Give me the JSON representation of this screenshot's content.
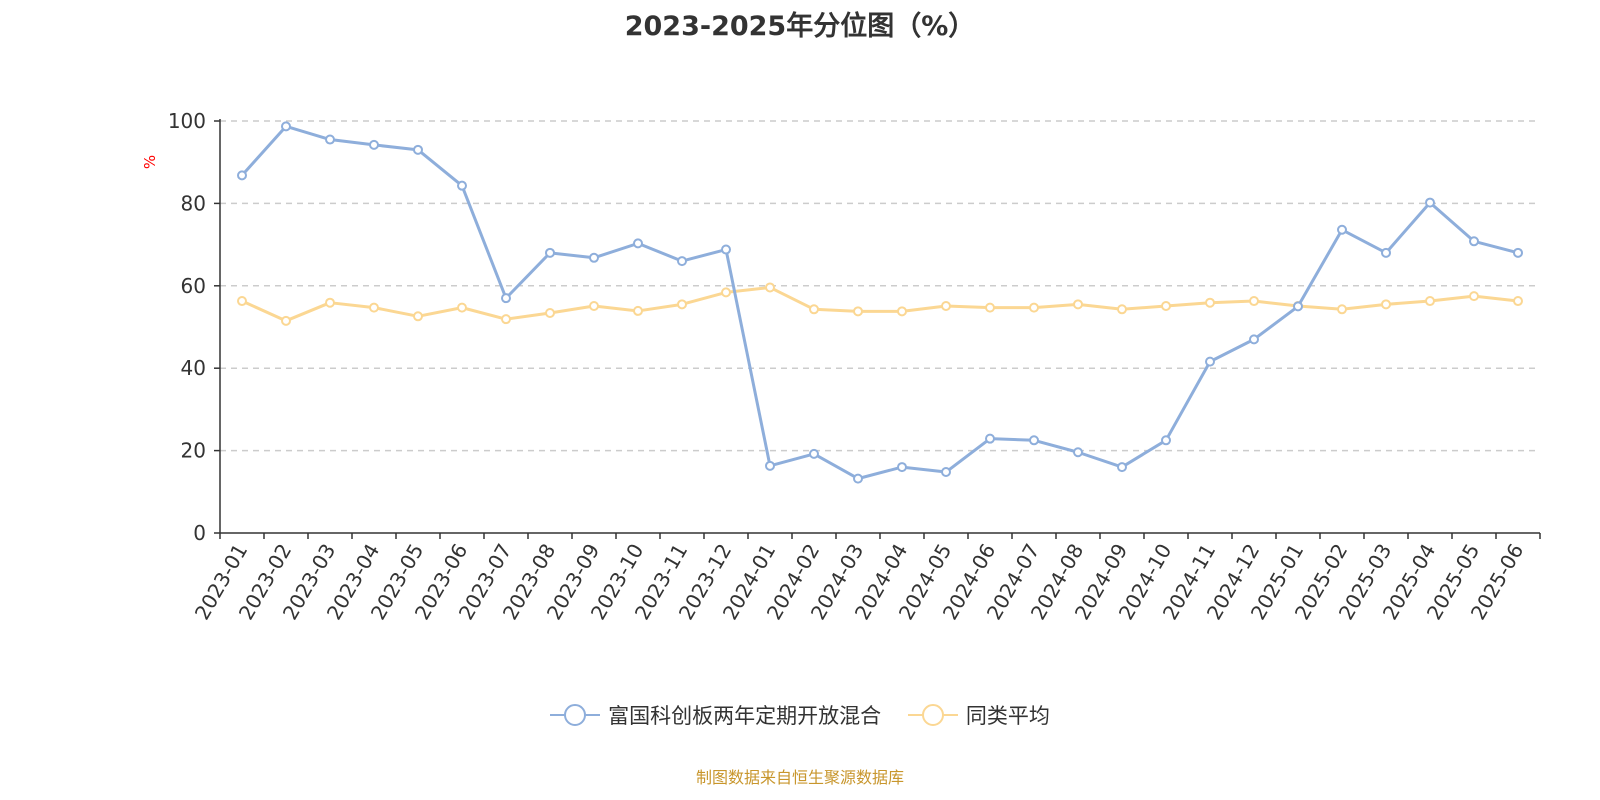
{
  "chart_data": {
    "type": "line",
    "title": "2023-2025年分位图（%）",
    "ylabel": "%",
    "ylim": [
      0,
      100
    ],
    "yticks": [
      0,
      20,
      40,
      60,
      80,
      100
    ],
    "grid": true,
    "legend_position": "bottom",
    "x": [
      "2023-01",
      "2023-02",
      "2023-03",
      "2023-04",
      "2023-05",
      "2023-06",
      "2023-07",
      "2023-08",
      "2023-09",
      "2023-10",
      "2023-11",
      "2023-12",
      "2024-01",
      "2024-02",
      "2024-03",
      "2024-04",
      "2024-05",
      "2024-06",
      "2024-07",
      "2024-08",
      "2024-09",
      "2024-10",
      "2024-11",
      "2024-12",
      "2025-01",
      "2025-02",
      "2025-03",
      "2025-04",
      "2025-05",
      "2025-06"
    ],
    "series": [
      {
        "name": "富国科创板两年定期开放混合",
        "color": "#8eaedb",
        "values": [
          86.8,
          98.7,
          95.5,
          94.2,
          93.0,
          84.3,
          57.0,
          68.0,
          66.8,
          70.3,
          66.0,
          68.8,
          16.3,
          19.2,
          13.2,
          16.0,
          14.8,
          22.9,
          22.5,
          19.6,
          16.0,
          22.5,
          41.6,
          47.0,
          55.0,
          73.6,
          68.0,
          80.2,
          70.8,
          68.0
        ]
      },
      {
        "name": "同类平均",
        "color": "#fbd793",
        "values": [
          56.3,
          51.5,
          55.9,
          54.7,
          52.6,
          54.7,
          51.9,
          53.4,
          55.1,
          53.9,
          55.5,
          58.4,
          59.6,
          54.3,
          53.8,
          53.8,
          55.1,
          54.7,
          54.7,
          55.5,
          54.3,
          55.1,
          55.9,
          56.3,
          55.1,
          54.3,
          55.5,
          56.3,
          57.5,
          56.3
        ]
      }
    ]
  },
  "source_note": "制图数据来自恒生聚源数据库"
}
